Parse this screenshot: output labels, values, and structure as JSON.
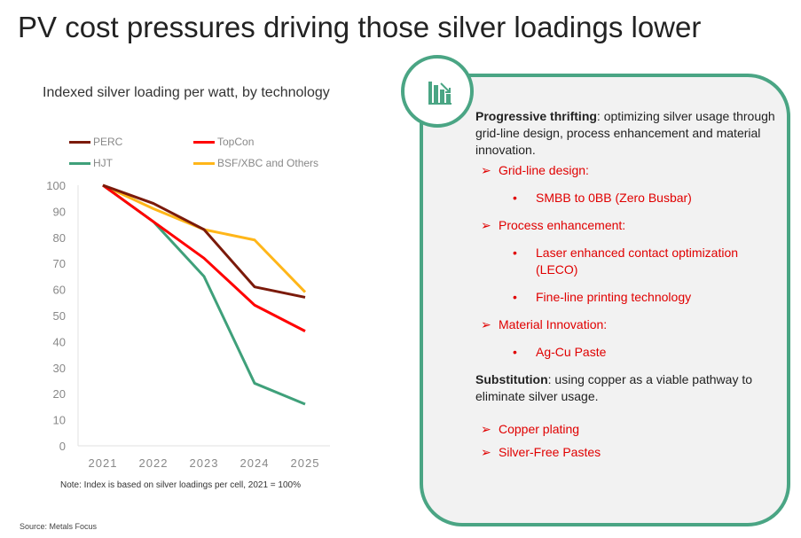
{
  "title": "PV cost pressures driving those silver loadings lower",
  "chart_data": {
    "type": "line",
    "title": "Indexed silver loading per watt, by technology",
    "categories": [
      "2021",
      "2022",
      "2023",
      "2024",
      "2025"
    ],
    "ylim": [
      0,
      100
    ],
    "yticks": [
      0,
      10,
      20,
      30,
      40,
      50,
      60,
      70,
      80,
      90,
      100
    ],
    "legend_placement": "top",
    "grid": false,
    "series": [
      {
        "name": "PERC",
        "color": "#7b1a0a",
        "values": [
          100,
          93,
          83,
          61,
          57
        ]
      },
      {
        "name": "TopCon",
        "color": "#ff0000",
        "values": [
          100,
          86,
          72,
          54,
          44
        ]
      },
      {
        "name": "HJT",
        "color": "#3fa07a",
        "values": [
          100,
          86,
          65,
          24,
          16
        ]
      },
      {
        "name": "BSF/XBC and Others",
        "color": "#ffb619",
        "values": [
          100,
          91,
          83,
          79,
          59
        ]
      }
    ],
    "note": "Note: Index is based on silver loadings per cell, 2021 = 100%"
  },
  "source": "Source: Metals Focus",
  "panel": {
    "icon": "bar-chart-down-icon",
    "p1_bold": "Progressive thrifting",
    "p1_rest": ": optimizing silver usage through grid-line design, process enhancement and material innovation.",
    "items": [
      {
        "label": "Grid-line design:",
        "sub": [
          "SMBB to 0BB (Zero Busbar)"
        ]
      },
      {
        "label": "Process enhancement:",
        "sub": [
          "Laser enhanced contact optimization (LECO)",
          "Fine-line printing technology"
        ]
      },
      {
        "label": "Material Innovation:",
        "sub": [
          "Ag-Cu Paste"
        ]
      }
    ],
    "p2_bold": "Substitution",
    "p2_rest": ": using copper as a viable pathway to eliminate silver usage.",
    "items2": [
      "Copper plating",
      "Silver-Free Pastes"
    ],
    "accent": "#4aa584"
  }
}
